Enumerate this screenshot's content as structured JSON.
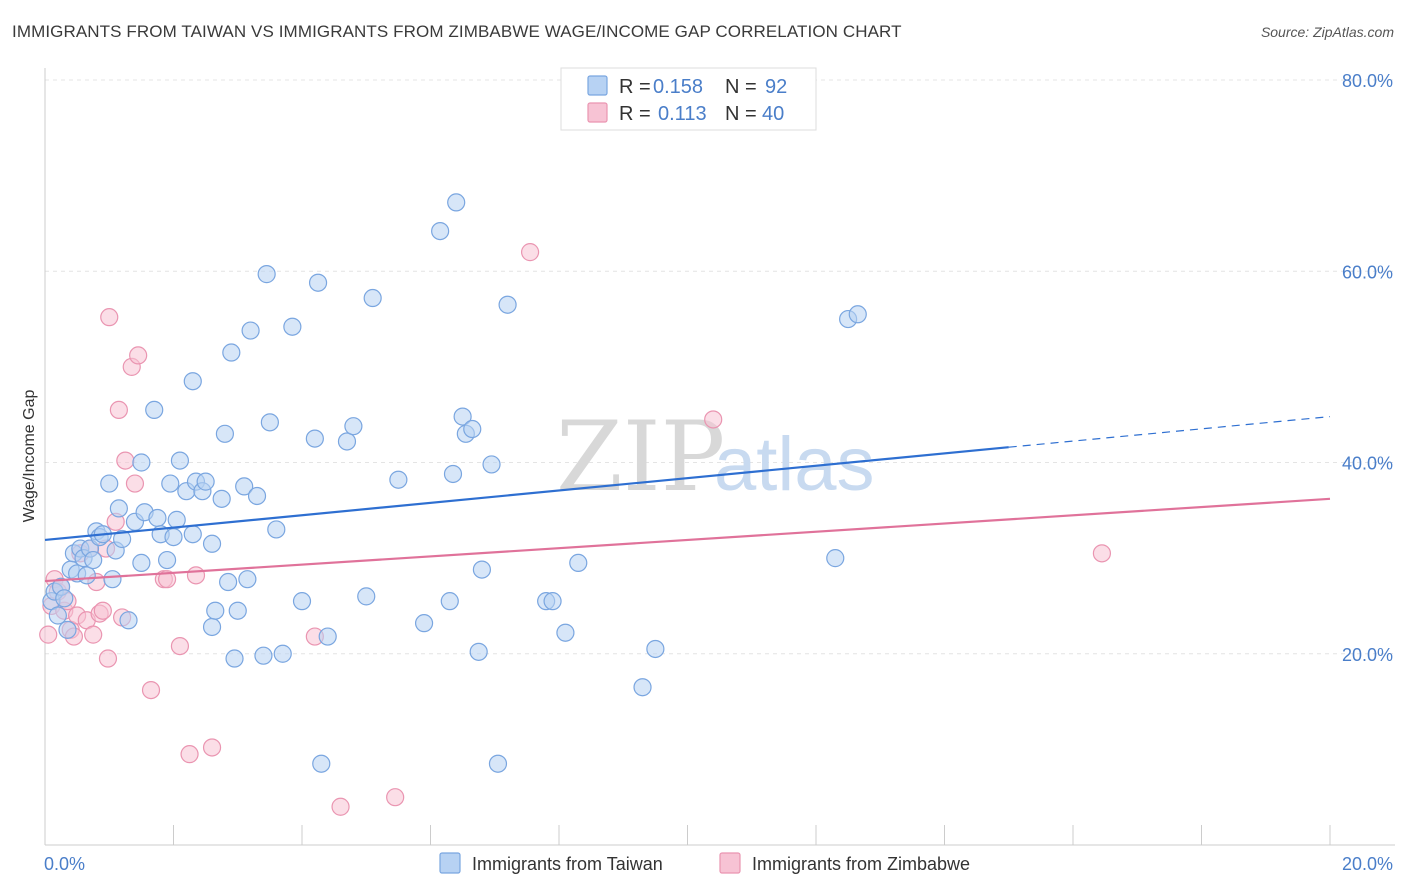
{
  "title": "IMMIGRANTS FROM TAIWAN VS IMMIGRANTS FROM ZIMBABWE WAGE/INCOME GAP CORRELATION CHART",
  "source": "Source: ZipAtlas.com",
  "watermark": {
    "zip": "ZIP",
    "atlas": "atlas"
  },
  "colors": {
    "taiwan_fill": "#b7d2f3",
    "taiwan_stroke": "#7aa6e0",
    "taiwan_line": "#2e6fd1",
    "zimbabwe_fill": "#f7c3d4",
    "zimbabwe_stroke": "#ea95b1",
    "zimbabwe_line": "#e0729a",
    "tick_text": "#4a7ec9",
    "grid": "#e4e4e4"
  },
  "legend": {
    "rows": [
      {
        "r_label": "R =",
        "r_value": "0.158",
        "n_label": "N =",
        "n_value": "92"
      },
      {
        "r_label": "R =",
        "r_value": "0.113",
        "n_label": "N =",
        "n_value": "40"
      }
    ]
  },
  "chart_data": {
    "type": "scatter",
    "ylabel": "Wage/Income Gap",
    "xlim": [
      0,
      20
    ],
    "ylim": [
      0,
      80
    ],
    "x_ticks": [
      "0.0%",
      "20.0%"
    ],
    "y_ticks": [
      {
        "value": 20,
        "label": "20.0%"
      },
      {
        "value": 40,
        "label": "40.0%"
      },
      {
        "value": 60,
        "label": "60.0%"
      },
      {
        "value": 80,
        "label": "80.0%"
      }
    ],
    "legend_position": "top-center",
    "series": [
      {
        "name": "Immigrants from Taiwan",
        "trend": {
          "x_start": 0,
          "y_start": 31.9,
          "x_solid_end": 15,
          "y_solid_end": 41.6,
          "x_end": 20,
          "y_end": 44.8
        },
        "points": [
          [
            0.1,
            25.5
          ],
          [
            0.15,
            26.5
          ],
          [
            0.2,
            24
          ],
          [
            0.25,
            27
          ],
          [
            0.3,
            25.8
          ],
          [
            0.35,
            22.5
          ],
          [
            0.4,
            28.8
          ],
          [
            0.45,
            30.5
          ],
          [
            0.5,
            28.4
          ],
          [
            0.55,
            31
          ],
          [
            0.6,
            30
          ],
          [
            0.65,
            28.2
          ],
          [
            0.7,
            31
          ],
          [
            0.75,
            29.8
          ],
          [
            0.8,
            32.8
          ],
          [
            0.85,
            32.2
          ],
          [
            0.9,
            32.5
          ],
          [
            1.0,
            37.8
          ],
          [
            1.05,
            27.8
          ],
          [
            1.1,
            30.8
          ],
          [
            1.15,
            35.2
          ],
          [
            1.2,
            32
          ],
          [
            1.3,
            23.5
          ],
          [
            1.4,
            33.8
          ],
          [
            1.5,
            29.5
          ],
          [
            1.5,
            40
          ],
          [
            1.55,
            34.8
          ],
          [
            1.7,
            45.5
          ],
          [
            1.75,
            34.2
          ],
          [
            1.8,
            32.5
          ],
          [
            1.9,
            29.8
          ],
          [
            1.95,
            37.8
          ],
          [
            2.0,
            32.2
          ],
          [
            2.05,
            34
          ],
          [
            2.1,
            40.2
          ],
          [
            2.2,
            37
          ],
          [
            2.3,
            48.5
          ],
          [
            2.3,
            32.5
          ],
          [
            2.35,
            38
          ],
          [
            2.45,
            37
          ],
          [
            2.5,
            38
          ],
          [
            2.6,
            22.8
          ],
          [
            2.6,
            31.5
          ],
          [
            2.65,
            24.5
          ],
          [
            2.75,
            36.2
          ],
          [
            2.8,
            43
          ],
          [
            2.85,
            27.5
          ],
          [
            2.9,
            51.5
          ],
          [
            2.95,
            19.5
          ],
          [
            3.0,
            24.5
          ],
          [
            3.1,
            37.5
          ],
          [
            3.15,
            27.8
          ],
          [
            3.2,
            53.8
          ],
          [
            3.3,
            36.5
          ],
          [
            3.4,
            19.8
          ],
          [
            3.45,
            59.7
          ],
          [
            3.5,
            44.2
          ],
          [
            3.6,
            33
          ],
          [
            3.7,
            20
          ],
          [
            3.85,
            54.2
          ],
          [
            4.0,
            25.5
          ],
          [
            4.2,
            42.5
          ],
          [
            4.25,
            58.8
          ],
          [
            4.3,
            8.5
          ],
          [
            4.4,
            21.8
          ],
          [
            4.7,
            42.2
          ],
          [
            4.8,
            43.8
          ],
          [
            5.0,
            26
          ],
          [
            5.1,
            57.2
          ],
          [
            5.5,
            38.2
          ],
          [
            5.9,
            23.2
          ],
          [
            6.15,
            64.2
          ],
          [
            6.3,
            25.5
          ],
          [
            6.4,
            67.2
          ],
          [
            6.35,
            38.8
          ],
          [
            6.5,
            44.8
          ],
          [
            6.55,
            43
          ],
          [
            6.65,
            43.5
          ],
          [
            6.75,
            20.2
          ],
          [
            6.8,
            28.8
          ],
          [
            6.95,
            39.8
          ],
          [
            7.05,
            8.5
          ],
          [
            7.2,
            56.5
          ],
          [
            7.8,
            25.5
          ],
          [
            7.9,
            25.5
          ],
          [
            8.1,
            22.2
          ],
          [
            8.3,
            29.5
          ],
          [
            9.3,
            16.5
          ],
          [
            9.5,
            20.5
          ],
          [
            12.3,
            30
          ],
          [
            12.5,
            55
          ],
          [
            12.65,
            55.5
          ]
        ]
      },
      {
        "name": "Immigrants from Zimbabwe",
        "trend": {
          "x_start": 0,
          "y_start": 27.6,
          "x_end": 20,
          "y_end": 36.2
        },
        "points": [
          [
            0.05,
            22
          ],
          [
            0.1,
            25
          ],
          [
            0.15,
            27.8
          ],
          [
            0.2,
            26.5
          ],
          [
            0.25,
            27
          ],
          [
            0.3,
            24.5
          ],
          [
            0.35,
            25.5
          ],
          [
            0.4,
            22.5
          ],
          [
            0.45,
            21.8
          ],
          [
            0.5,
            24
          ],
          [
            0.55,
            30.5
          ],
          [
            0.65,
            23.5
          ],
          [
            0.7,
            31
          ],
          [
            0.75,
            22
          ],
          [
            0.8,
            27.5
          ],
          [
            0.85,
            24.2
          ],
          [
            0.9,
            24.5
          ],
          [
            0.95,
            31
          ],
          [
            0.98,
            19.5
          ],
          [
            1.0,
            55.2
          ],
          [
            1.1,
            33.8
          ],
          [
            1.15,
            45.5
          ],
          [
            1.2,
            23.8
          ],
          [
            1.25,
            40.2
          ],
          [
            1.35,
            50
          ],
          [
            1.4,
            37.8
          ],
          [
            1.45,
            51.2
          ],
          [
            1.65,
            16.2
          ],
          [
            1.85,
            27.8
          ],
          [
            1.9,
            27.8
          ],
          [
            2.1,
            20.8
          ],
          [
            2.25,
            9.5
          ],
          [
            2.35,
            28.2
          ],
          [
            2.6,
            10.2
          ],
          [
            4.2,
            21.8
          ],
          [
            4.6,
            4
          ],
          [
            5.45,
            5
          ],
          [
            7.55,
            62
          ],
          [
            10.4,
            44.5
          ],
          [
            16.45,
            30.5
          ]
        ]
      }
    ]
  },
  "bottom_legend": [
    {
      "label": "Immigrants from Taiwan"
    },
    {
      "label": "Immigrants from Zimbabwe"
    }
  ]
}
